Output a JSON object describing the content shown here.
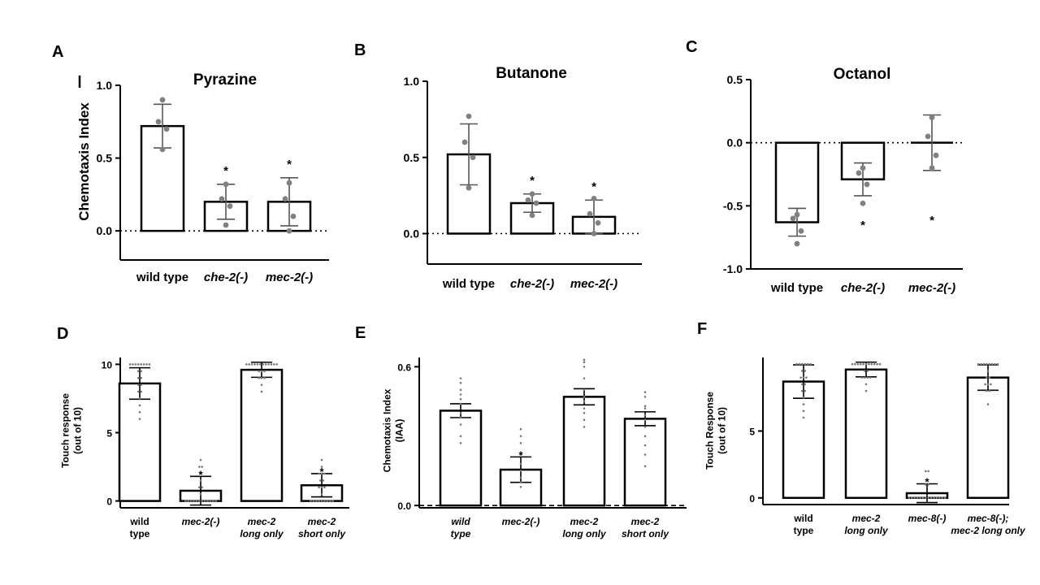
{
  "figure": {
    "panels": [
      "A",
      "B",
      "C",
      "D",
      "E",
      "F"
    ]
  },
  "chart_data": [
    {
      "panel": "A",
      "type": "bar",
      "title": "Pyrazine",
      "ylabel": "Chemotaxis Index",
      "ylim": [
        -0.2,
        1.0
      ],
      "yticks": [
        "0.0",
        "0.5",
        "1.0"
      ],
      "categories": [
        "wild type",
        "che-2(-)",
        "mec-2(-)"
      ],
      "italic": [
        false,
        true,
        true
      ],
      "values": [
        0.72,
        0.2,
        0.2
      ],
      "errors": [
        0.15,
        0.12,
        0.165
      ],
      "points": [
        [
          0.9,
          0.75,
          0.7,
          0.56
        ],
        [
          0.32,
          0.22,
          0.17,
          0.04
        ],
        [
          0.33,
          0.22,
          0.1,
          0.0
        ]
      ],
      "significance": [
        "",
        "*",
        "*"
      ],
      "zero_line": "dotted"
    },
    {
      "panel": "B",
      "type": "bar",
      "title": "Butanone",
      "ylabel": "",
      "ylim": [
        -0.2,
        1.0
      ],
      "yticks": [
        "0.0",
        "0.5",
        "1.0"
      ],
      "categories": [
        "wild type",
        "che-2(-)",
        "mec-2(-)"
      ],
      "italic": [
        false,
        true,
        true
      ],
      "values": [
        0.52,
        0.2,
        0.11
      ],
      "errors": [
        0.2,
        0.06,
        0.11
      ],
      "points": [
        [
          0.77,
          0.6,
          0.5,
          0.3
        ],
        [
          0.26,
          0.22,
          0.2,
          0.12
        ],
        [
          0.23,
          0.13,
          0.07,
          0.0
        ]
      ],
      "significance": [
        "",
        "*",
        "*"
      ],
      "zero_line": "dotted"
    },
    {
      "panel": "C",
      "type": "bar",
      "title": "Octanol",
      "ylabel": "",
      "ylim": [
        -1.0,
        0.5
      ],
      "yticks": [
        "-1.0",
        "-0.5",
        "0.0",
        "0.5"
      ],
      "categories": [
        "wild type",
        "che-2(-)",
        "mec-2(-)"
      ],
      "italic": [
        false,
        true,
        true
      ],
      "values": [
        -0.63,
        -0.29,
        0.0
      ],
      "errors": [
        0.11,
        0.13,
        0.22
      ],
      "points": [
        [
          -0.57,
          -0.6,
          -0.7,
          -0.8
        ],
        [
          -0.2,
          -0.24,
          -0.33,
          -0.48
        ],
        [
          0.2,
          0.05,
          -0.1,
          -0.2
        ]
      ],
      "significance": [
        "",
        "*",
        "*"
      ],
      "zero_line": "dotted"
    },
    {
      "panel": "D",
      "type": "bar",
      "title": "",
      "ylabel": "Touch response\n(out of 10)",
      "ylim": [
        -0.5,
        10.5
      ],
      "yticks": [
        "0",
        "5",
        "10"
      ],
      "categories": [
        "wild\ntype",
        "mec-2(-)",
        "mec-2\nlong only",
        "mec-2\nshort only"
      ],
      "italic": [
        false,
        true,
        true,
        true
      ],
      "values": [
        8.6,
        0.75,
        9.6,
        1.15
      ],
      "errors": [
        1.15,
        1.05,
        0.55,
        0.85
      ],
      "points": [
        [
          10,
          10,
          10,
          10,
          10,
          10,
          10,
          10,
          9.5,
          9.5,
          9,
          9,
          8.5,
          8.5,
          8,
          8,
          7.5,
          7,
          6.5,
          6
        ],
        [
          3,
          2.5,
          2.5,
          2,
          1.5,
          1,
          1,
          0.5,
          0,
          0,
          0,
          0,
          0,
          0,
          0,
          0,
          0,
          0,
          0,
          0
        ],
        [
          10,
          10,
          10,
          10,
          10,
          10,
          10,
          10,
          10,
          10,
          10,
          10,
          9.5,
          9.5,
          9.5,
          9,
          9,
          9,
          8.5,
          8
        ],
        [
          3,
          2.5,
          2,
          2,
          2,
          1.5,
          1.5,
          1,
          1,
          1,
          0.5,
          0,
          0,
          0,
          0,
          0,
          0,
          0,
          0,
          0
        ]
      ],
      "significance": [
        "",
        "*",
        "",
        "*"
      ],
      "zero_line": "none"
    },
    {
      "panel": "E",
      "type": "bar",
      "title": "",
      "ylabel": "Chemotaxis Index\n(IAA)",
      "ylim": [
        -0.01,
        0.64
      ],
      "yticks": [
        "0.0",
        "0.6"
      ],
      "categories": [
        "wild\ntype",
        "mec-2(-)",
        "mec-2\nlong only",
        "mec-2\nshort only"
      ],
      "italic": [
        true,
        true,
        true,
        true
      ],
      "values": [
        0.41,
        0.155,
        0.47,
        0.375
      ],
      "errors": [
        0.03,
        0.055,
        0.035,
        0.03
      ],
      "points": [
        [
          0.55,
          0.53,
          0.5,
          0.48,
          0.46,
          0.44,
          0.4,
          0.38,
          0.35,
          0.3,
          0.27
        ],
        [
          0.33,
          0.3,
          0.27,
          0.22,
          0.18,
          0.15,
          0.12,
          0.1,
          0.08
        ],
        [
          0.63,
          0.62,
          0.6,
          0.55,
          0.5,
          0.47,
          0.45,
          0.42,
          0.4,
          0.37,
          0.34
        ],
        [
          0.49,
          0.47,
          0.43,
          0.42,
          0.39,
          0.37,
          0.34,
          0.3,
          0.26,
          0.22,
          0.17
        ]
      ],
      "significance": [
        "",
        "*",
        "",
        ""
      ],
      "zero_line": "dashed"
    },
    {
      "panel": "F",
      "type": "bar",
      "title": "",
      "ylabel": "Touch Response\n(out of 10)",
      "ylim": [
        -0.5,
        10.5
      ],
      "yticks": [
        "0",
        "5"
      ],
      "categories": [
        "wild\ntype",
        "mec-2\nlong only",
        "mec-8(-)",
        "mec-8(-);\nmec-2 long only"
      ],
      "italic": [
        false,
        true,
        true,
        true
      ],
      "values": [
        8.7,
        9.6,
        0.35,
        9.0
      ],
      "errors": [
        1.25,
        0.55,
        0.7,
        0.95
      ],
      "points": [
        [
          10,
          10,
          10,
          10,
          10,
          10,
          9.5,
          9.5,
          9,
          9,
          9,
          8.5,
          8.5,
          8,
          8,
          7.5,
          7,
          6.5,
          6
        ],
        [
          10,
          10,
          10,
          10,
          10,
          10,
          10,
          10,
          10,
          10,
          10,
          9.5,
          9.5,
          9,
          9,
          9,
          9,
          8.5,
          8
        ],
        [
          2,
          2,
          1,
          1,
          0,
          0,
          0,
          0,
          0,
          0,
          0,
          0,
          0,
          0,
          0,
          0,
          0,
          0
        ],
        [
          10,
          10,
          10,
          10,
          10,
          10,
          10,
          10,
          9.5,
          9,
          9,
          8.5,
          8.5,
          8.5,
          8,
          8,
          7
        ]
      ],
      "significance": [
        "",
        "",
        "*",
        ""
      ],
      "zero_line": "none"
    }
  ]
}
